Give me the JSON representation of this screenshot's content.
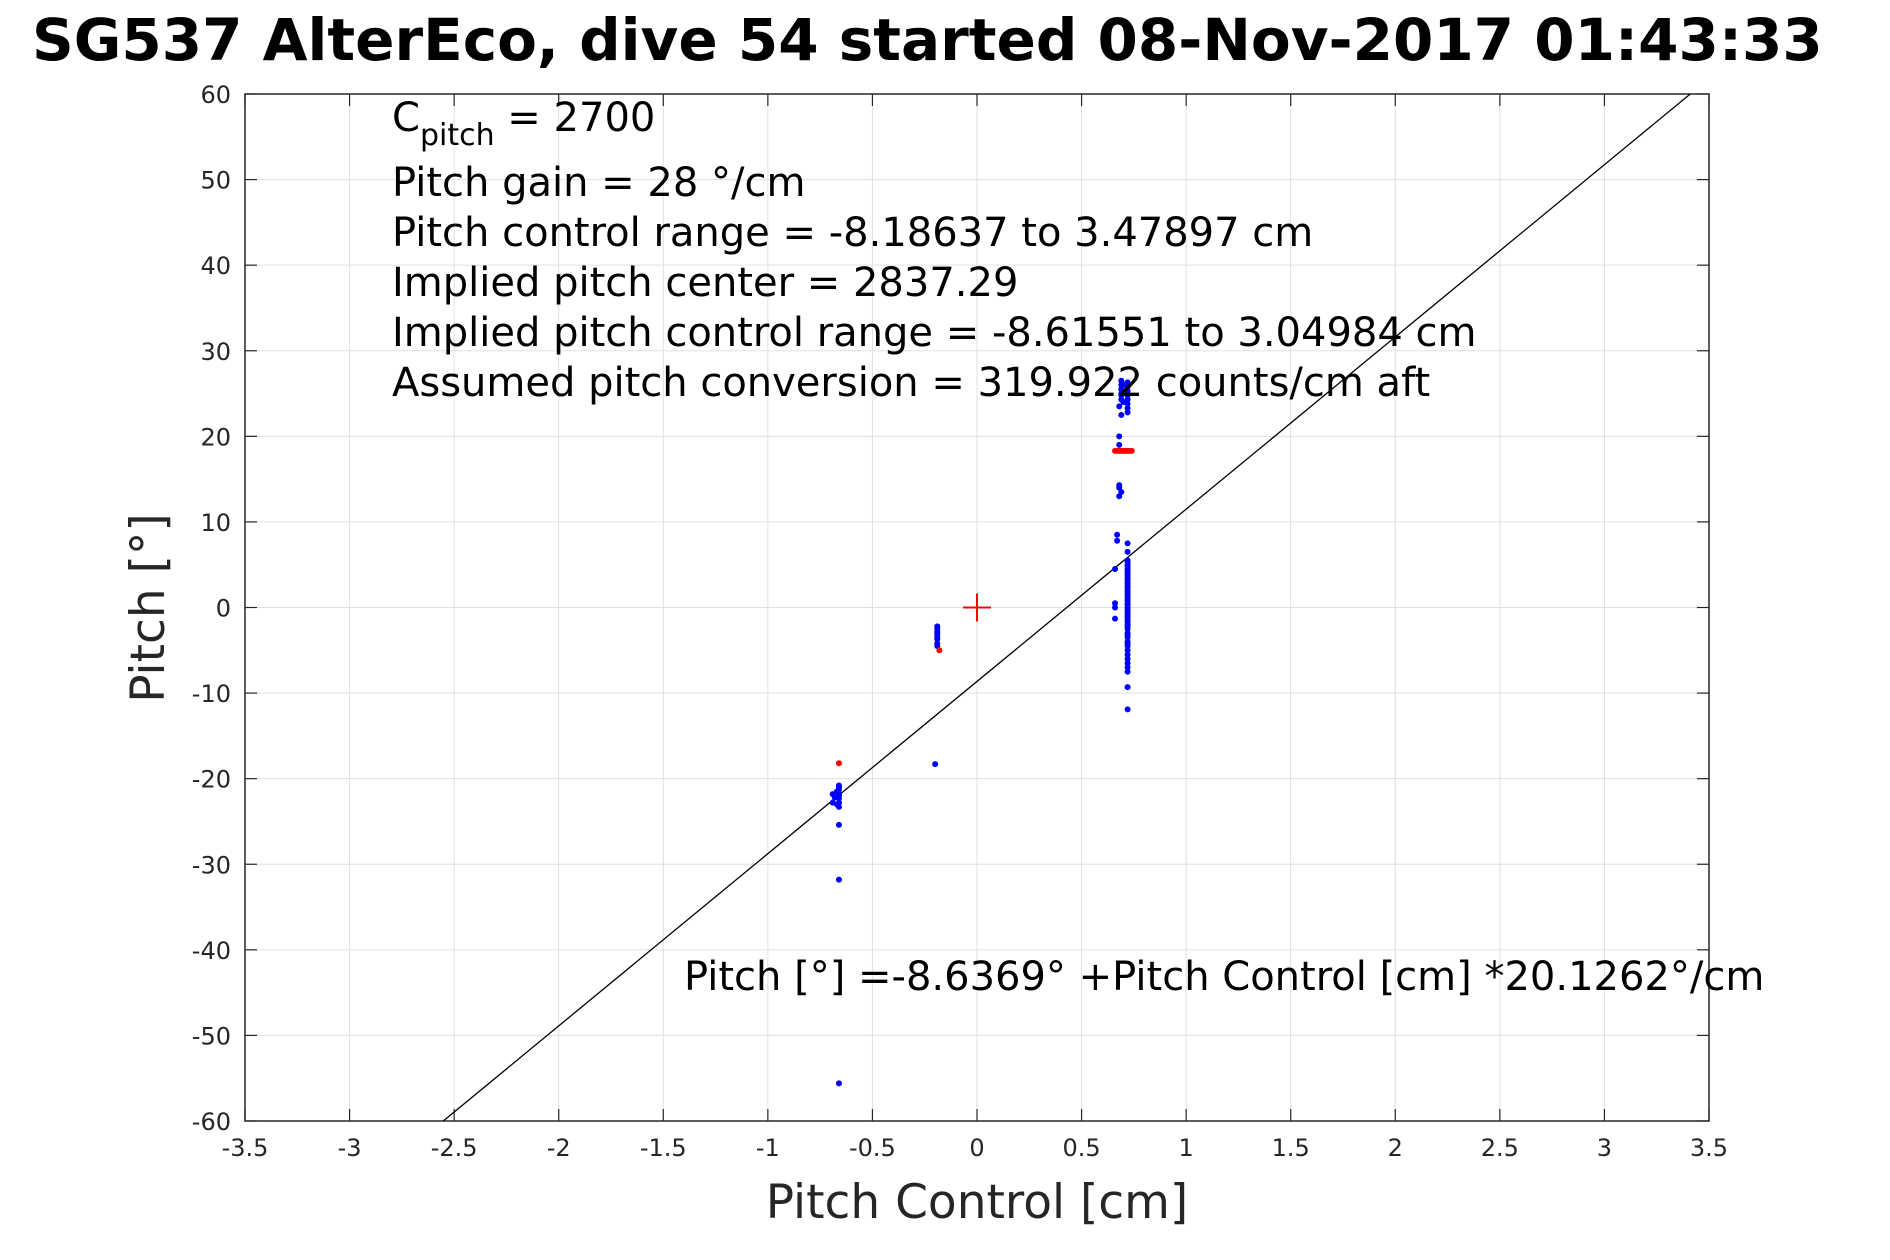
{
  "chart_data": {
    "type": "scatter",
    "title": "SG537 AlterEco, dive 54 started 08-Nov-2017 01:43:33",
    "xlabel": "Pitch Control [cm]",
    "ylabel": "Pitch [°]",
    "xlim": [
      -3.5,
      3.5
    ],
    "ylim": [
      -60,
      60
    ],
    "x_ticks": [
      -3.5,
      -3,
      -2.5,
      -2,
      -1.5,
      -1,
      -0.5,
      0,
      0.5,
      1,
      1.5,
      2,
      2.5,
      3,
      3.5
    ],
    "x_tick_labels": [
      "-3.5",
      "-3",
      "-2.5",
      "-2",
      "-1.5",
      "-1",
      "-0.5",
      "0",
      "0.5",
      "1",
      "1.5",
      "2",
      "2.5",
      "3",
      "3.5"
    ],
    "y_ticks": [
      60,
      50,
      40,
      30,
      20,
      10,
      0,
      -10,
      -20,
      -30,
      -40,
      -50,
      -60
    ],
    "y_tick_labels": [
      "60",
      "50",
      "40",
      "30",
      "20",
      "10",
      "0",
      "-10",
      "-20",
      "-30",
      "-40",
      "-50",
      "-60"
    ],
    "grid": true,
    "annotations": {
      "c_pitch_prefix": "C",
      "c_pitch_sub": "pitch",
      "c_pitch_suffix": " = 2700",
      "lines": [
        "Pitch gain = 28 °/cm",
        "Pitch control range = -8.18637 to 3.47897 cm",
        "Implied pitch center = 2837.29",
        "Implied pitch control range = -8.61551 to 3.04984 cm",
        "Assumed pitch conversion = 319.922 counts/cm aft"
      ],
      "equation": "Pitch [°] =-8.6369° +Pitch Control [cm] *20.1262°/cm"
    },
    "series": [
      {
        "color": "#0000ff",
        "marker": "dot",
        "x": [
          0.72,
          0.72,
          0.72,
          0.72,
          0.72,
          0.72,
          0.72,
          0.72,
          0.72,
          0.72,
          0.72,
          0.72,
          0.72,
          0.72,
          0.72,
          0.72,
          0.72,
          0.72,
          0.72,
          0.72,
          0.72,
          0.72,
          0.72,
          0.72,
          0.72,
          0.72,
          0.72,
          0.72,
          0.72,
          0.72,
          0.72,
          0.72,
          0.72,
          0.72,
          0.72,
          0.72,
          0.72,
          0.72,
          0.72,
          0.72,
          0.72,
          0.72,
          0.72,
          0.72,
          0.72,
          0.72,
          0.72,
          0.72,
          0.72,
          0.72,
          0.72,
          0.72,
          0.72,
          0.72,
          0.72,
          0.72,
          0.72,
          0.69,
          0.69,
          0.69,
          0.69,
          0.68,
          0.68,
          0.68,
          0.68,
          0.69,
          0.69,
          0.68,
          0.67,
          0.67,
          0.66,
          0.66,
          0.66,
          0.66,
          0.68,
          0.69,
          0.69,
          0.7,
          0.7,
          -0.19,
          -0.19,
          -0.19,
          -0.19,
          -0.19,
          -0.19,
          -0.19,
          -0.19,
          -0.2,
          -0.19,
          -0.66,
          -0.66,
          -0.66,
          -0.66,
          -0.66,
          -0.66,
          -0.66,
          -0.67,
          -0.67,
          -0.68,
          -0.69,
          -0.69,
          -0.66,
          -0.66,
          -0.66,
          -0.66
        ],
        "y": [
          26.3,
          25.8,
          25.3,
          24.8,
          24.3,
          23.8,
          23.3,
          22.8,
          7.5,
          6.5,
          5.5,
          5.0,
          4.5,
          4.0,
          3.5,
          3.0,
          2.5,
          2.0,
          1.5,
          1.0,
          0.5,
          0.0,
          -0.5,
          -1.0,
          -1.5,
          -2.0,
          -2.5,
          -3.0,
          -3.5,
          -4.0,
          -4.5,
          -5.0,
          -5.5,
          -6.0,
          -6.5,
          -7.0,
          -7.5,
          -9.3,
          -11.9,
          4.8,
          3.8,
          2.8,
          1.8,
          0.8,
          -0.2,
          -1.2,
          -2.2,
          -3.2,
          -4.2,
          5.3,
          4.3,
          3.3,
          2.3,
          1.3,
          0.3,
          -0.7,
          -1.7,
          25.5,
          26.0,
          24.8,
          24.3,
          20.0,
          19.0,
          14.3,
          14.0,
          13.5,
          26.5,
          13.0,
          8.5,
          7.8,
          0.5,
          0.0,
          -1.3,
          4.5,
          23.5,
          22.5,
          25.0,
          26.0,
          24.0,
          -2.2,
          -2.8,
          -3.3,
          -3.7,
          -4.2,
          -2.5,
          -3.0,
          -3.6,
          -18.3,
          -4.5,
          -20.8,
          -21.3,
          -21.8,
          -22.3,
          -22.8,
          -21.0,
          -22.0,
          -23.0,
          -21.5,
          -22.2,
          -21.8,
          -22.8,
          -25.4,
          -31.8,
          -55.6,
          -23.3
        ]
      },
      {
        "color": "#ff0000",
        "marker": "dot",
        "x": [
          0.66,
          0.67,
          0.68,
          0.69,
          0.7,
          0.71,
          0.72,
          0.73,
          0.74,
          -0.18,
          -0.66
        ],
        "y": [
          18.3,
          18.3,
          18.3,
          18.3,
          18.3,
          18.3,
          18.3,
          18.3,
          18.3,
          -5.0,
          -18.2
        ]
      },
      {
        "color": "#ff0000",
        "marker": "plus",
        "x": [
          0
        ],
        "y": [
          0
        ]
      }
    ],
    "fit_line": {
      "color": "#000000",
      "intercept": -8.6369,
      "slope": 20.1262
    }
  }
}
